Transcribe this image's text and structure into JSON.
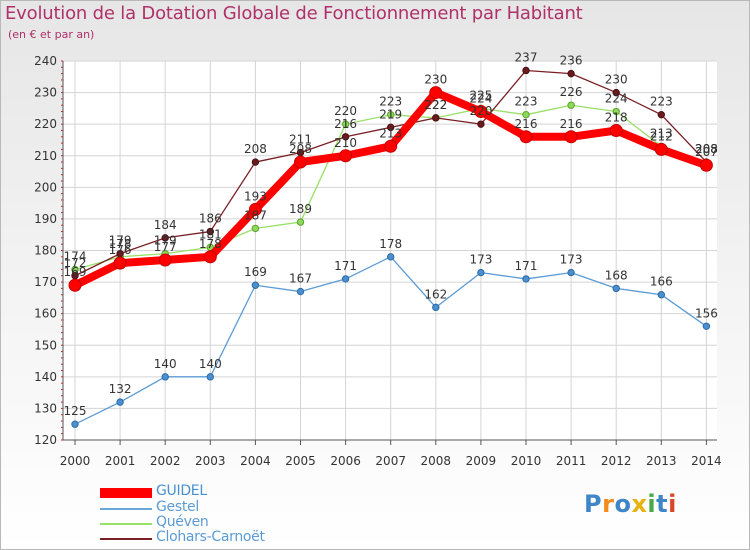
{
  "chart_data": {
    "type": "line",
    "title": "Evolution de la Dotation Globale de Fonctionnement par Habitant",
    "subtitle": "(en € et par an)",
    "xlabel": "",
    "ylabel": "",
    "x": [
      "2000",
      "2001",
      "2002",
      "2003",
      "2004",
      "2005",
      "2006",
      "2007",
      "2008",
      "2009",
      "2010",
      "2011",
      "2012",
      "2013",
      "2014"
    ],
    "ylim": [
      120,
      240
    ],
    "yticks": [
      120,
      130,
      140,
      150,
      160,
      170,
      180,
      190,
      200,
      210,
      220,
      230,
      240
    ],
    "grid": true,
    "legend_position": "bottom-left",
    "series": [
      {
        "name": "GUIDEL",
        "color": "#ff0000",
        "values": [
          169,
          176,
          177,
          178,
          193,
          208,
          210,
          213,
          230,
          224,
          216,
          216,
          218,
          212,
          207
        ]
      },
      {
        "name": "Gestel",
        "color": "#5b9bd5",
        "values": [
          125,
          132,
          140,
          140,
          169,
          167,
          171,
          178,
          162,
          173,
          171,
          173,
          168,
          166,
          156
        ]
      },
      {
        "name": "Quéven",
        "color": "#99e067",
        "values": [
          174,
          178,
          179,
          181,
          187,
          189,
          220,
          223,
          222,
          225,
          223,
          226,
          224,
          213,
          208
        ]
      },
      {
        "name": "Clohars-Carnoët",
        "color": "#7a1f24",
        "values": [
          172,
          179,
          184,
          186,
          208,
          211,
          216,
          219,
          222,
          220,
          237,
          236,
          230,
          223,
          208
        ]
      }
    ]
  },
  "logo": {
    "letters": [
      "P",
      "r",
      "o",
      "x",
      "i",
      "t",
      "i"
    ],
    "colors": [
      "#3e86c8",
      "#f28c1e",
      "#3e86c8",
      "#e8b30f",
      "#4aa845",
      "#3e86c8",
      "#d9472b"
    ]
  }
}
